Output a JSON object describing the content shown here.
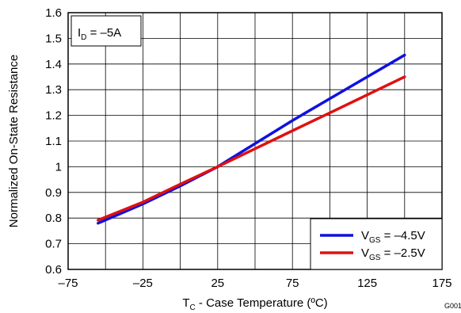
{
  "chart_data": {
    "type": "line",
    "xlabel": {
      "main": "T",
      "sub": "C",
      "rest": " - Case Temperature (ºC)"
    },
    "ylabel": "Normalized On-State Resistance",
    "xlim": [
      -75,
      175
    ],
    "ylim": [
      0.6,
      1.6
    ],
    "x_ticks": [
      -75,
      -50,
      -25,
      0,
      25,
      50,
      75,
      100,
      125,
      150,
      175
    ],
    "x_tick_labels": [
      "–75",
      "",
      "–25",
      "",
      "25",
      "",
      "75",
      "",
      "125",
      "",
      "175"
    ],
    "y_ticks": [
      0.6,
      0.7,
      0.8,
      0.9,
      1.0,
      1.1,
      1.2,
      1.3,
      1.4,
      1.5,
      1.6
    ],
    "y_tick_labels": [
      "0.6",
      "0.7",
      "0.8",
      "0.9",
      "1",
      "1.1",
      "1.2",
      "1.3",
      "1.4",
      "1.5",
      "1.6"
    ],
    "grid": true,
    "annotation": {
      "main": "I",
      "sub": "D",
      "rest": " = –5A"
    },
    "legend_position": "bottom-right",
    "figure_id": "G001",
    "series": [
      {
        "name": {
          "main": "V",
          "sub": "GS",
          "rest": " = –4.5V"
        },
        "color": "#1010e0",
        "x": [
          -55,
          -25,
          0,
          25,
          50,
          75,
          100,
          125,
          150
        ],
        "y": [
          0.78,
          0.855,
          0.925,
          1.0,
          1.09,
          1.18,
          1.265,
          1.35,
          1.435
        ]
      },
      {
        "name": {
          "main": "V",
          "sub": "GS",
          "rest": " = –2.5V"
        },
        "color": "#e01010",
        "x": [
          -55,
          -25,
          0,
          25,
          50,
          75,
          100,
          125,
          150
        ],
        "y": [
          0.792,
          0.862,
          0.932,
          1.0,
          1.07,
          1.14,
          1.21,
          1.28,
          1.35
        ]
      }
    ]
  }
}
